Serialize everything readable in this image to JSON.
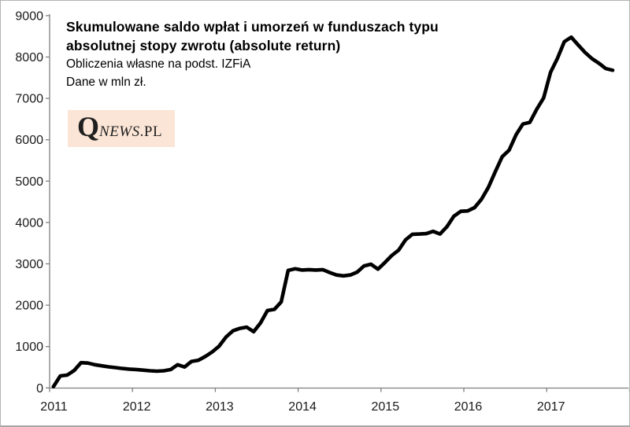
{
  "header": {
    "title_line1": "Skumulowane saldo wpłat i umorzeń w funduszach typu",
    "title_line2": "absolutnej stopy zwrotu (absolute return)",
    "source_note": "Obliczenia własne na podst. IZFiA",
    "unit_note": "Dane w mln zł."
  },
  "logo": {
    "q": "Q",
    "news": "NEWS",
    "pl": ".PL",
    "bg_color": "#fbe5d6",
    "text_color": "#1f1f1f"
  },
  "chart_data": {
    "type": "line",
    "title": "Skumulowane saldo wpłat i umorzeń w funduszach typu absolutnej stopy zwrotu (absolute return)",
    "subtitle": "Obliczenia własne na podst. IZFiA",
    "unit": "mln zł",
    "x_start": "2011-01",
    "x_end": "2017-10",
    "frequency": "monthly",
    "values": [
      30,
      290,
      310,
      420,
      610,
      600,
      560,
      535,
      510,
      490,
      470,
      455,
      445,
      430,
      415,
      405,
      415,
      445,
      560,
      505,
      640,
      670,
      760,
      870,
      1010,
      1230,
      1380,
      1440,
      1470,
      1360,
      1570,
      1870,
      1900,
      2080,
      2840,
      2880,
      2850,
      2860,
      2850,
      2860,
      2790,
      2730,
      2710,
      2730,
      2800,
      2950,
      2990,
      2870,
      3030,
      3200,
      3330,
      3580,
      3715,
      3720,
      3730,
      3785,
      3720,
      3900,
      4150,
      4270,
      4280,
      4360,
      4560,
      4850,
      5230,
      5590,
      5750,
      6120,
      6380,
      6420,
      6740,
      7010,
      7630,
      7970,
      8370,
      8480,
      8290,
      8110,
      7960,
      7850,
      7720,
      7680
    ],
    "x_tick_labels": [
      "2011",
      "2012",
      "2013",
      "2014",
      "2015",
      "2016",
      "2017"
    ],
    "y_ticks": [
      0,
      1000,
      2000,
      3000,
      4000,
      5000,
      6000,
      7000,
      8000,
      9000
    ],
    "ylim": [
      0,
      9000
    ],
    "grid": false,
    "legend": "none",
    "line_color": "#000000",
    "axis_color": "#808080",
    "label_color": "#1a1a1a"
  }
}
